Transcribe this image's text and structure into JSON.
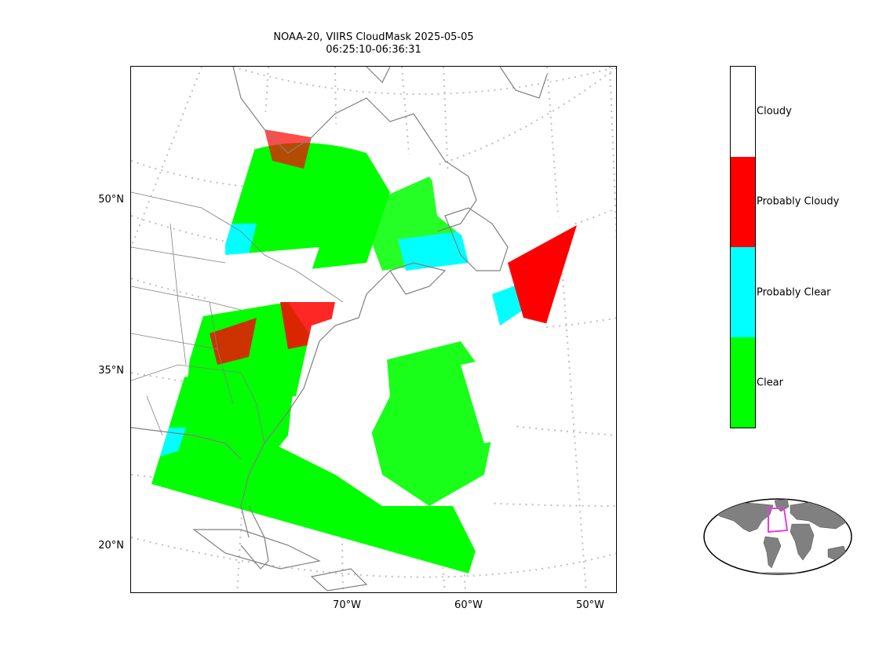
{
  "title": {
    "line1": "NOAA-20, VIIRS CloudMask 2025-05-05",
    "line2": "06:25:10-06:36:31"
  },
  "axes": {
    "lat_labels": [
      "50°N",
      "35°N",
      "20°N"
    ],
    "lon_labels": [
      "70°W",
      "60°W",
      "50°W"
    ]
  },
  "colorbar": {
    "categories": [
      {
        "label": "Cloudy",
        "color": "#ffffff"
      },
      {
        "label": "Probably Cloudy",
        "color": "#ff0000"
      },
      {
        "label": "Probably Clear",
        "color": "#00ffff"
      },
      {
        "label": "Clear",
        "color": "#00ff00"
      }
    ]
  },
  "colors": {
    "coastline": "#808080",
    "gridline": "#bfbfbf",
    "inset_box": "#e040e0",
    "inset_land": "#808080"
  }
}
